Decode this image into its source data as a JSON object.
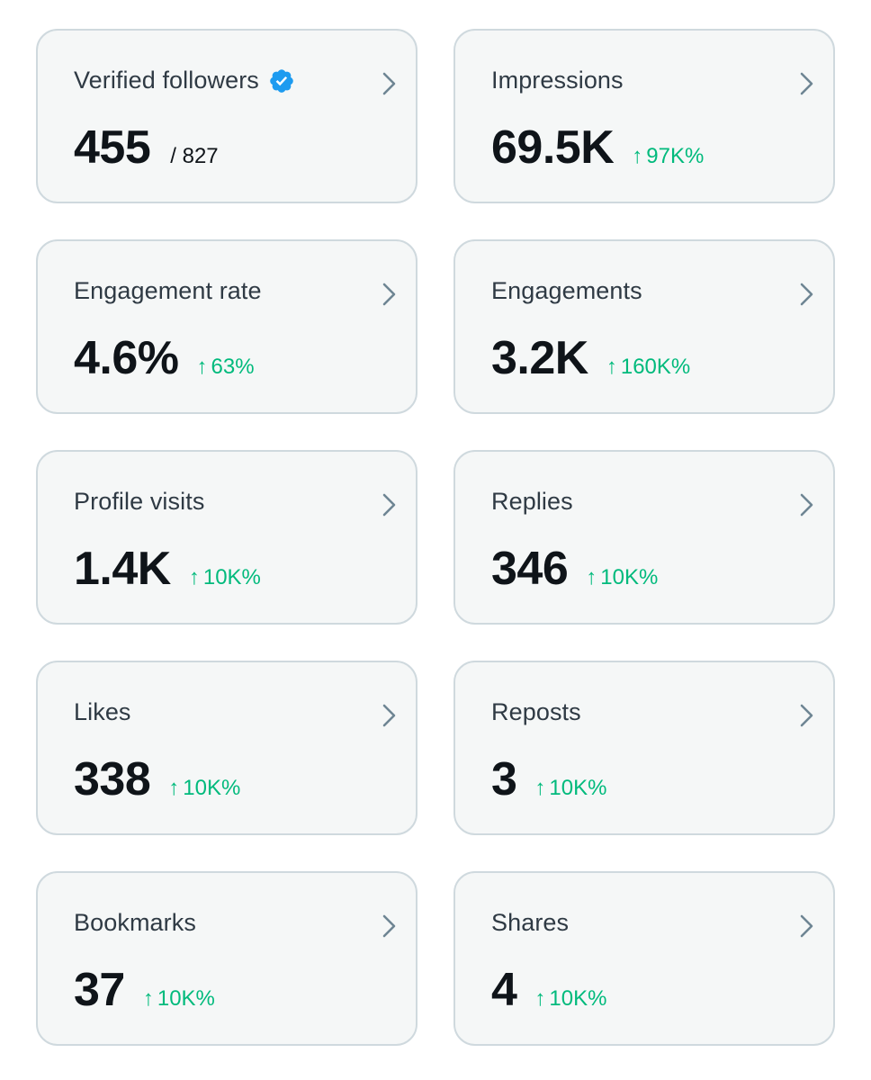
{
  "colors": {
    "card_bg": "#f5f7f7",
    "card_border": "#cfd9de",
    "title": "#2f3a44",
    "value": "#0f1419",
    "positive": "#00ba7c",
    "verified_badge": "#1d9bf0",
    "chevron": "#6e8593"
  },
  "cards": [
    {
      "title": "Verified followers",
      "value": "455",
      "sub": "/ 827",
      "delta": "",
      "arrow": ""
    },
    {
      "title": "Impressions",
      "value": "69.5K",
      "sub": "",
      "delta": "97K%",
      "arrow": "↑"
    },
    {
      "title": "Engagement rate",
      "value": "4.6%",
      "sub": "",
      "delta": "63%",
      "arrow": "↑"
    },
    {
      "title": "Engagements",
      "value": "3.2K",
      "sub": "",
      "delta": "160K%",
      "arrow": "↑"
    },
    {
      "title": "Profile visits",
      "value": "1.4K",
      "sub": "",
      "delta": "10K%",
      "arrow": "↑"
    },
    {
      "title": "Replies",
      "value": "346",
      "sub": "",
      "delta": "10K%",
      "arrow": "↑"
    },
    {
      "title": "Likes",
      "value": "338",
      "sub": "",
      "delta": "10K%",
      "arrow": "↑"
    },
    {
      "title": "Reposts",
      "value": "3",
      "sub": "",
      "delta": "10K%",
      "arrow": "↑"
    },
    {
      "title": "Bookmarks",
      "value": "37",
      "sub": "",
      "delta": "10K%",
      "arrow": "↑"
    },
    {
      "title": "Shares",
      "value": "4",
      "sub": "",
      "delta": "10K%",
      "arrow": "↑"
    }
  ]
}
